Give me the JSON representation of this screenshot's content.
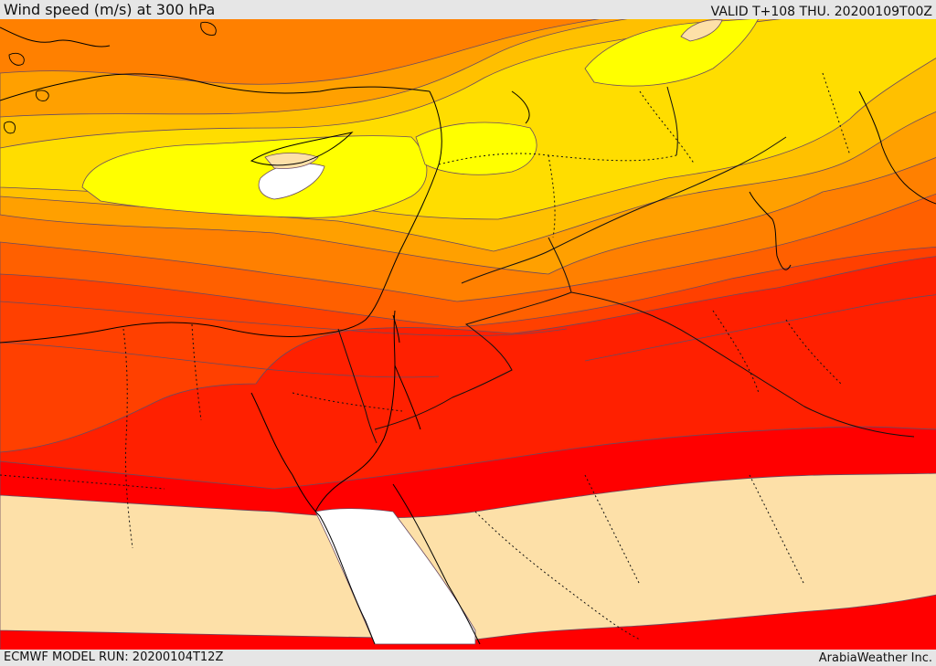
{
  "header": {
    "title": "Wind speed (m/s) at 300 hPa",
    "valid": "VALID T+108 THU. 20200109T00Z"
  },
  "footer": {
    "model_run": "ECMWF MODEL RUN: 20200104T12Z",
    "credit": "ArabiaWeather Inc."
  },
  "map": {
    "variable": "wind speed",
    "units": "m/s",
    "level": "300 hPa",
    "colors": {
      "white": "#ffffff",
      "tan": "#fde0a8",
      "yellow_bright": "#ffff00",
      "yellow": "#ffdd00",
      "yellow_orange": "#ffc000",
      "orange_light": "#ffa000",
      "orange": "#ff8000",
      "orange_red": "#ff6000",
      "red_orange": "#ff4000",
      "red_dark": "#ff2000",
      "red": "#ff0000",
      "contour": "#6a4a60",
      "coast": "#000000"
    }
  }
}
